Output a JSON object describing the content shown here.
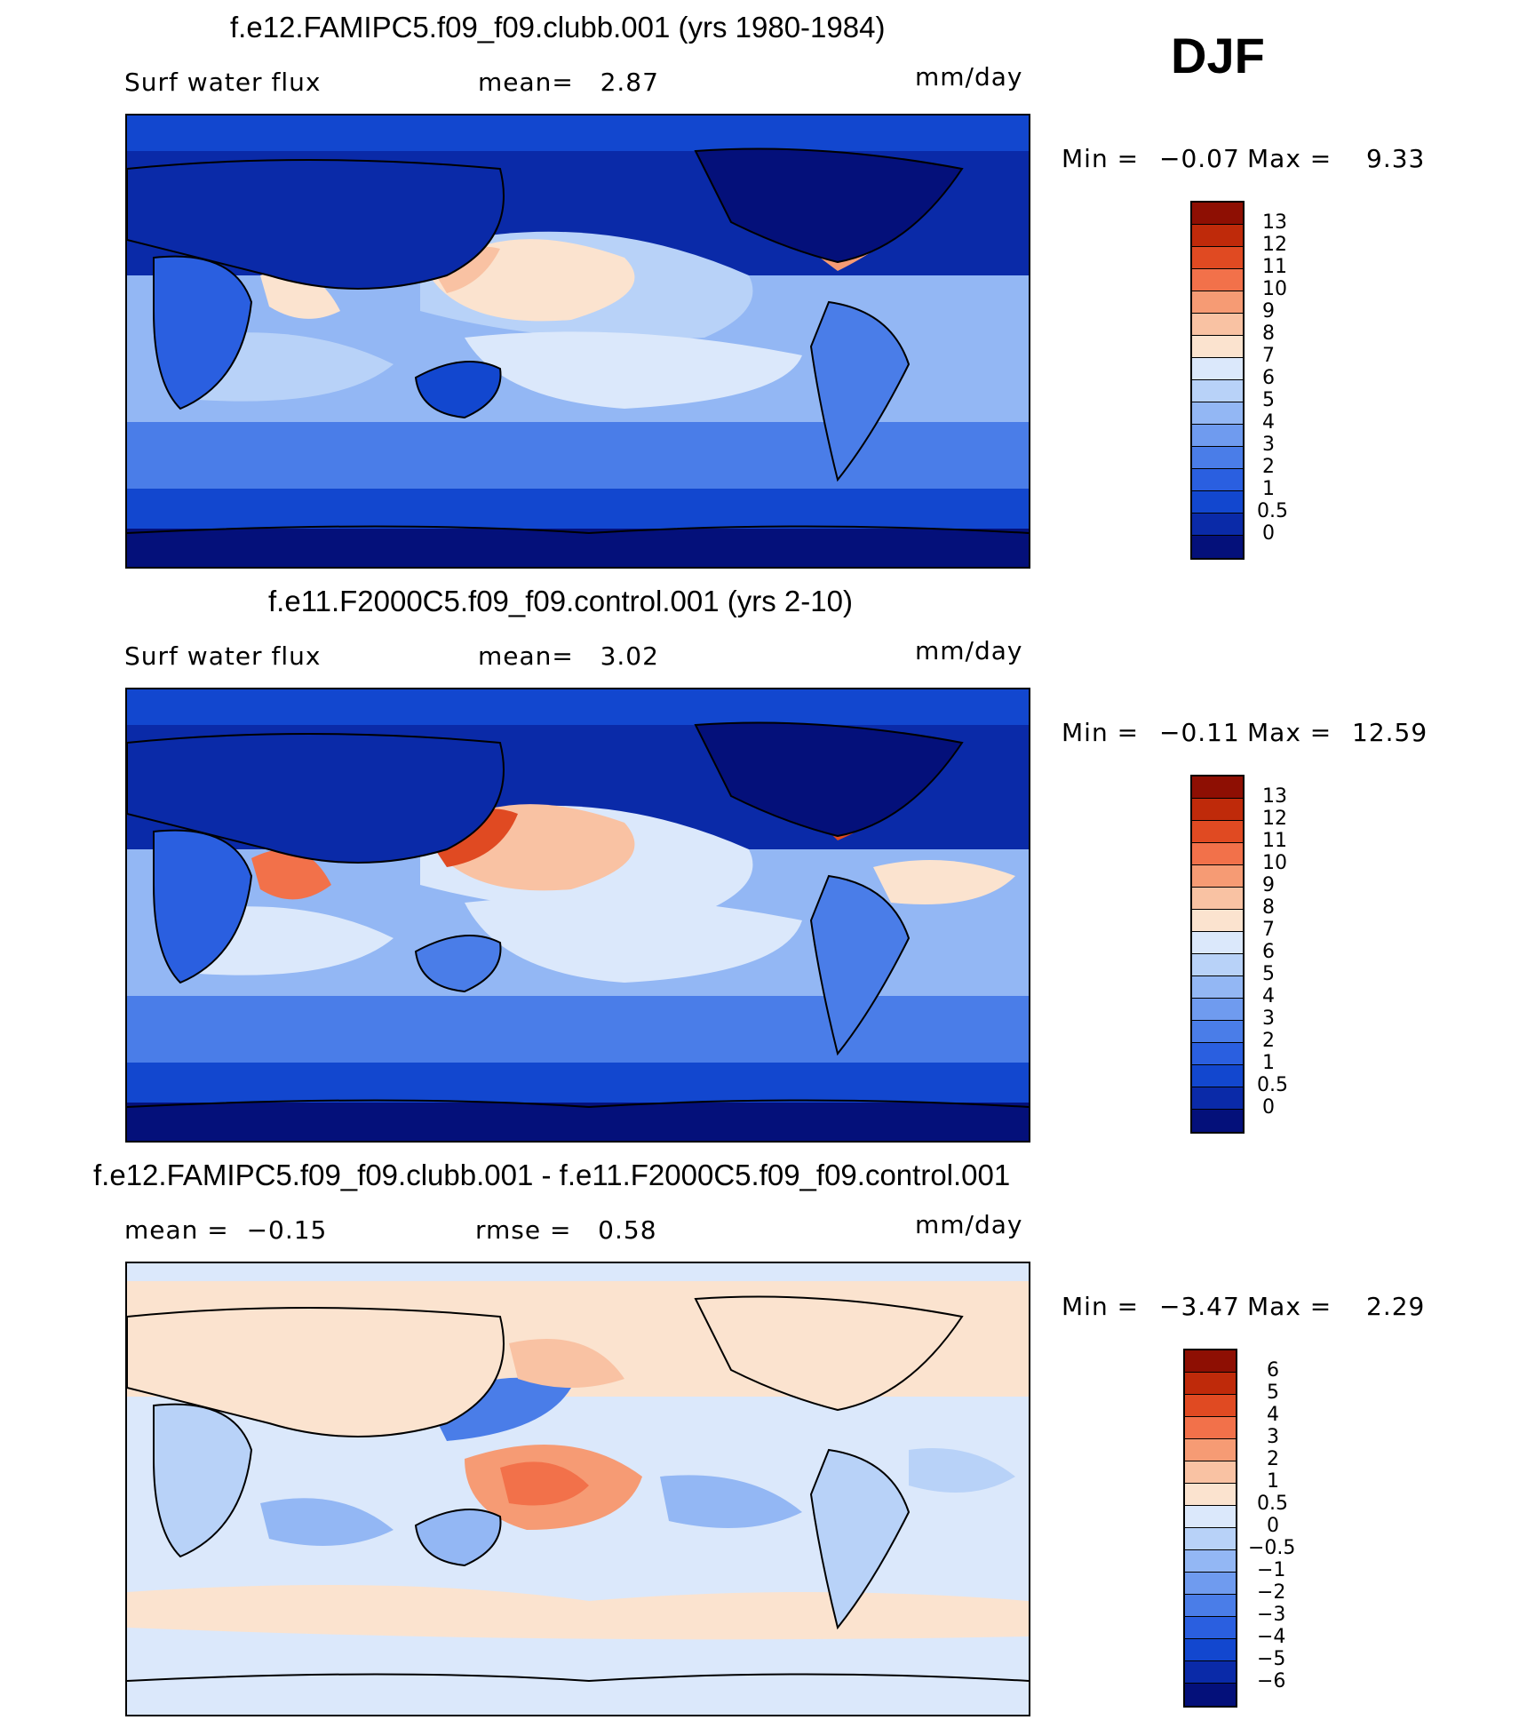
{
  "season": "DJF",
  "colors": {
    "abs": [
      "#04107a",
      "#0a2aa8",
      "#1247cf",
      "#2a5fe0",
      "#4a7de8",
      "#6f9bef",
      "#93b7f4",
      "#b8d2f8",
      "#dbe8fb",
      "#fbe3cf",
      "#f9c2a3",
      "#f69b74",
      "#f2714a",
      "#e04a22",
      "#bf2a0a",
      "#8e0f03"
    ],
    "diff": [
      "#04107a",
      "#0a2aa8",
      "#1247cf",
      "#2a5fe0",
      "#4a7de8",
      "#6f9bef",
      "#93b7f4",
      "#b8d2f8",
      "#dbe8fb",
      "#fbe3cf",
      "#f9c2a3",
      "#f69b74",
      "#f2714a",
      "#e04a22",
      "#bf2a0a",
      "#8e0f03"
    ]
  },
  "panels": [
    {
      "title": "f.e12.FAMIPC5.f09_f09.clubb.001 (yrs 1980-1984)",
      "left_text": "Surf water flux",
      "mid_text": "mean=   2.87",
      "units": "mm/day",
      "min_label": "Min =",
      "min_value": "−0.07",
      "max_label": "Max =",
      "max_value": "9.33",
      "levels": [
        "13",
        "12",
        "11",
        "10",
        "9",
        "8",
        "7",
        "6",
        "5",
        "4",
        "3",
        "2",
        "1",
        "0.5",
        "0"
      ]
    },
    {
      "title": "f.e11.F2000C5.f09_f09.control.001 (yrs 2-10)",
      "left_text": "Surf water flux",
      "mid_text": "mean=   3.02",
      "units": "mm/day",
      "min_label": "Min =",
      "min_value": "−0.11",
      "max_label": "Max =",
      "max_value": "12.59",
      "levels": [
        "13",
        "12",
        "11",
        "10",
        "9",
        "8",
        "7",
        "6",
        "5",
        "4",
        "3",
        "2",
        "1",
        "0.5",
        "0"
      ]
    },
    {
      "title": "f.e12.FAMIPC5.f09_f09.clubb.001 - f.e11.F2000C5.f09_f09.control.001",
      "left_text": "mean =  −0.15",
      "mid_text": "rmse =   0.58",
      "units": "mm/day",
      "min_label": "Min =",
      "min_value": "−3.47",
      "max_label": "Max =",
      "max_value": "2.29",
      "levels": [
        "6",
        "5",
        "4",
        "3",
        "2",
        "1",
        "0.5",
        "0",
        "−0.5",
        "−1",
        "−2",
        "−3",
        "−4",
        "−5",
        "−6"
      ]
    }
  ]
}
